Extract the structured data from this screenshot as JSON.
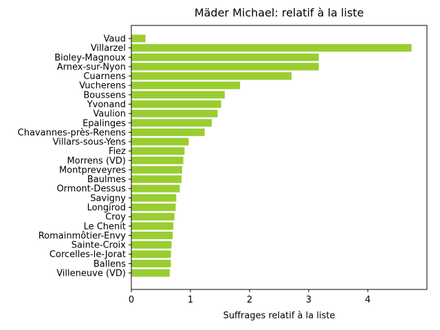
{
  "chart_data": {
    "type": "bar",
    "orientation": "horizontal",
    "title": "Mäder Michael: relatif à la liste",
    "xlabel": "Suffrages relatif à la liste",
    "ylabel": "",
    "xlim": [
      0,
      5
    ],
    "xticks": [
      "0",
      "1",
      "2",
      "3",
      "4"
    ],
    "bar_color": "#9acd32",
    "grid": false,
    "categories": [
      "Vaud",
      "Villarzel",
      "Bioley-Magnoux",
      "Arnex-sur-Nyon",
      "Cuarnens",
      "Vucherens",
      "Boussens",
      "Yvonand",
      "Vaulion",
      "Epalinges",
      "Chavannes-près-Renens",
      "Villars-sous-Yens",
      "Fiez",
      "Morrens (VD)",
      "Montpreveyres",
      "Baulmes",
      "Ormont-Dessus",
      "Savigny",
      "Longirod",
      "Croy",
      "Le Chenit",
      "Romainmôtier-Envy",
      "Sainte-Croix",
      "Corcelles-le-Jorat",
      "Ballens",
      "Villeneuve (VD)"
    ],
    "values": [
      0.24,
      4.74,
      3.17,
      3.17,
      2.71,
      1.84,
      1.58,
      1.52,
      1.46,
      1.36,
      1.24,
      0.97,
      0.9,
      0.88,
      0.86,
      0.85,
      0.82,
      0.76,
      0.75,
      0.73,
      0.71,
      0.7,
      0.68,
      0.67,
      0.67,
      0.65
    ]
  }
}
